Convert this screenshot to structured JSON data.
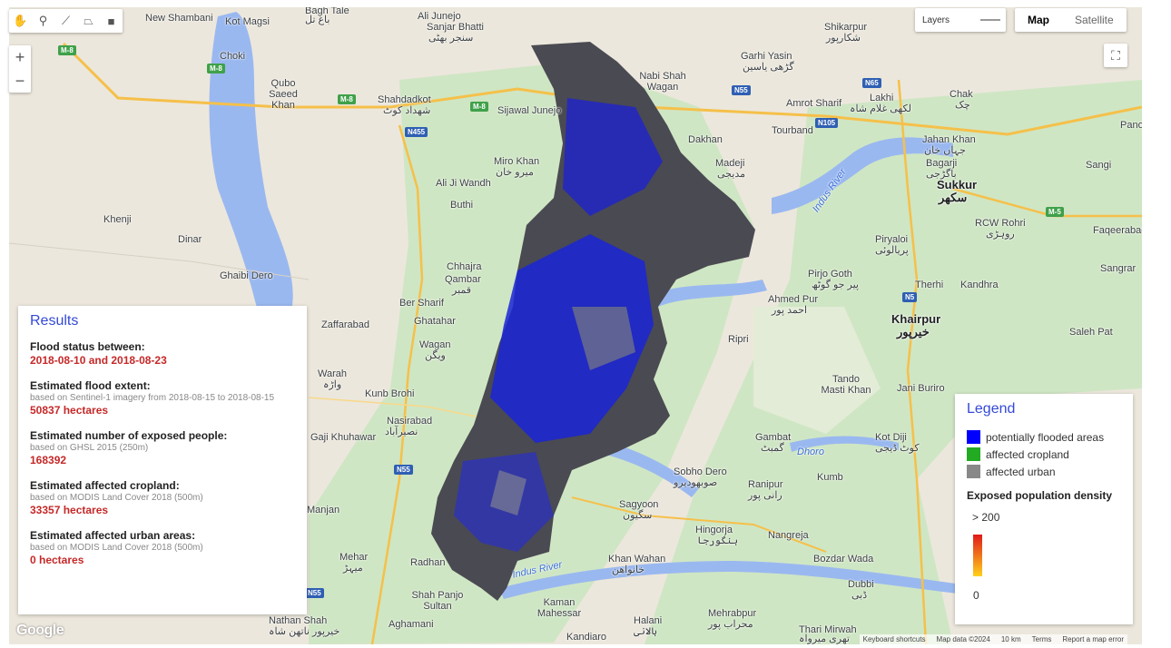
{
  "toolbar": {
    "tools": [
      {
        "icon": "hand-icon",
        "glyph": "✋"
      },
      {
        "icon": "marker-icon",
        "glyph": "⚲"
      },
      {
        "icon": "line-icon",
        "glyph": "⟋"
      },
      {
        "icon": "polygon-icon",
        "glyph": "⏢"
      },
      {
        "icon": "rectangle-icon",
        "glyph": "■"
      }
    ],
    "zoom_in": "+",
    "zoom_out": "−",
    "fullscreen_glyph": "⛶"
  },
  "layers": {
    "label": "Layers"
  },
  "map_type": {
    "options": [
      "Map",
      "Satellite"
    ],
    "selected": "Map"
  },
  "places": [
    "New Shambani",
    "Kot Magsi",
    "Bagh Tale",
    "باغ تل",
    "Sanjar Bhatti",
    "سنجر بھٹی",
    "Ali Junejo",
    "Garhi Yasin",
    "گڑھی یاسین",
    "Shikarpur",
    "شکارپور",
    "Choki",
    "Qubo Saeed Khan",
    "Shahdadkot",
    "شھداد کوٹ",
    "Sijawal Junejo",
    "Nabi Shah Wagan",
    "Amrot Sharif",
    "Lakhi",
    "لکھی غلام شاہ",
    "Chak",
    "چک",
    "Pano Ak",
    "Tourband",
    "Jahan Khan",
    "جہاں خان",
    "Bagarji",
    "باگڑجی",
    "Sukkur",
    "سکھر",
    "Sangi",
    "Miro Khan",
    "میرو خان",
    "Dakhan",
    "Madeji",
    "مدیجی",
    "Ali Ji Wandh",
    "Buthi",
    "Khenji",
    "Dinar",
    "RCW Rohri",
    "روہڑی",
    "Faqeerabad",
    "Piryaloi",
    "پریالوئی",
    "Ghaibi Dero",
    "Chhajra",
    "Qambar",
    "قمبر",
    "Pirjo Goth",
    "پیر جو گوٹھ",
    "Therhi",
    "Kandhra",
    "Sangrar",
    "Ahmed Pur",
    "احمد پور",
    "Ber Sharif",
    "Ghatahar",
    "Zaffarabad",
    "Khairpur",
    "خیرپور",
    "Wagan",
    "ویگن",
    "Ripri",
    "Saleh Pat",
    "Warah",
    "واڑہ",
    "Kunb Brohi",
    "Tando Masti Khan",
    "Jani Buriro",
    "Nasirabad",
    "نصیرآباد",
    "Gaji Khuhawar",
    "Gambat",
    "گمبٹ",
    "Kot Diji",
    "کوٹ ڈیجی",
    "Sobho Dero",
    "صوبھودیرو",
    "Ranipur",
    "رانی پور",
    "Kumb",
    "Manjan",
    "Sagyoon",
    "سگیون",
    "Hingorja",
    "ہنگورجا",
    "Nangreja",
    "Mehar",
    "میہڑ",
    "Radhan",
    "Khan Wahan",
    "خانواھن",
    "Bozdar Wada",
    "Dubbi",
    "ڈبی",
    "Shah Panjo Sultan",
    "Kaman Mahessar",
    "Nathan Shah",
    "خیرپور ناتھن شاہ",
    "Aghamani",
    "Kandiaro",
    "Halani",
    "ہالانی",
    "Mehrabpur",
    "محراب پور",
    "Thari Mirwah",
    "تھری میرواہ"
  ],
  "rivers": [
    "Indus River",
    "Indus River",
    "Dhoro"
  ],
  "highways": [
    "M-8",
    "M-8",
    "M-8",
    "M-8",
    "N455",
    "N55",
    "N65",
    "N105",
    "N5",
    "M-5",
    "N55",
    "N55"
  ],
  "results": {
    "title": "Results",
    "flood_status_heading": "Flood status between:",
    "flood_status_value": "2018-08-10 and 2018-08-23",
    "extent_heading": "Estimated flood extent:",
    "extent_source": "based on Sentinel-1 imagery from 2018-08-15 to 2018-08-15",
    "extent_value": "50837 hectares",
    "people_heading": "Estimated number of exposed people:",
    "people_source": "based on GHSL 2015 (250m)",
    "people_value": "168392",
    "cropland_heading": "Estimated affected cropland:",
    "cropland_source": "based on MODIS Land Cover 2018 (500m)",
    "cropland_value": "33357 hectares",
    "urban_heading": "Estimated affected urban areas:",
    "urban_source": "based on MODIS Land Cover 2018 (500m)",
    "urban_value": "0 hectares"
  },
  "legend": {
    "title": "Legend",
    "items": [
      {
        "label": "potentially flooded areas",
        "color": "#0000ff"
      },
      {
        "label": "affected cropland",
        "color": "#22aa22"
      },
      {
        "label": "affected urban",
        "color": "#888888"
      }
    ],
    "density_heading": "Exposed population density",
    "density_max": "> 200",
    "density_min": "0",
    "gradient_colors": [
      "#e01a1a",
      "#ffd11a"
    ]
  },
  "attribution": {
    "google": "Google",
    "shortcuts": "Keyboard shortcuts",
    "map_data": "Map data ©2024",
    "scale": "10 km",
    "terms": "Terms",
    "report": "Report a map error"
  },
  "colors": {
    "water": "#9ab8f0",
    "land": "#ece7dc",
    "green": "#cfe6c4",
    "road": "#f5c04a",
    "accent": "#3449d6",
    "value": "#c62828"
  }
}
